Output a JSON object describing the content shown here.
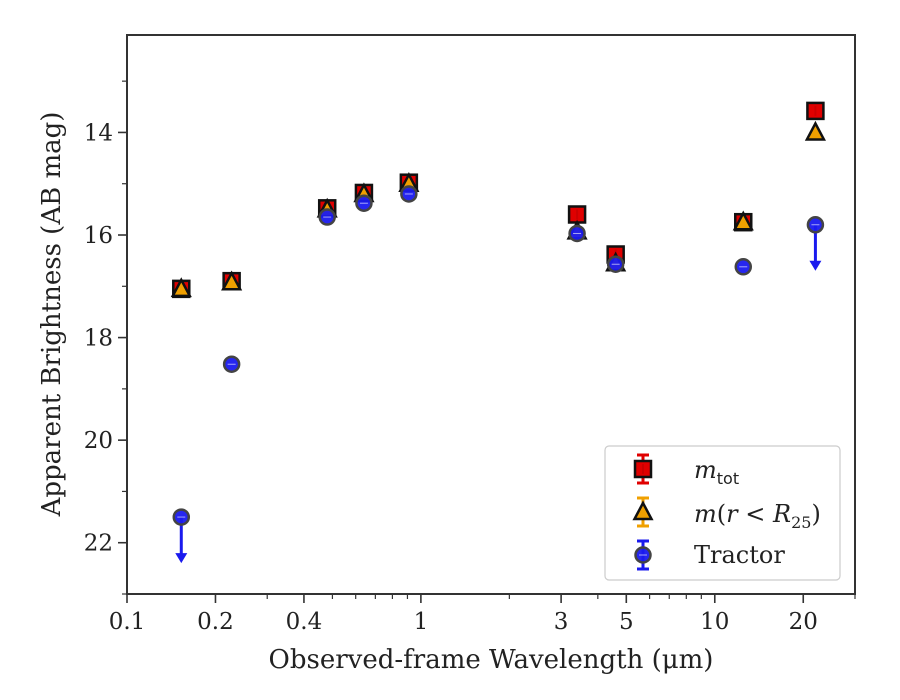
{
  "chart_data": {
    "type": "scatter",
    "xlabel": "Observed-frame Wavelength (μm)",
    "ylabel": "Apparent Brightness (AB mag)",
    "x_scale": "log",
    "xlim": [
      0.1,
      30
    ],
    "ylim": [
      23,
      12.1
    ],
    "y_inverted": true,
    "x_ticks": [
      {
        "value": 0.1,
        "label": "0.1"
      },
      {
        "value": 0.2,
        "label": "0.2"
      },
      {
        "value": 0.4,
        "label": "0.4"
      },
      {
        "value": 1,
        "label": "1"
      },
      {
        "value": 3,
        "label": "3"
      },
      {
        "value": 5,
        "label": "5"
      },
      {
        "value": 10,
        "label": "10"
      },
      {
        "value": 20,
        "label": "20"
      }
    ],
    "y_ticks": [
      {
        "value": 14,
        "label": "14"
      },
      {
        "value": 16,
        "label": "16"
      },
      {
        "value": 18,
        "label": "18"
      },
      {
        "value": 20,
        "label": "20"
      },
      {
        "value": 22,
        "label": "22"
      }
    ],
    "grid": false,
    "legend_position": "lower-right",
    "series": [
      {
        "name": "m_tot",
        "legend_label": "m_tot",
        "marker": "square",
        "color": "#e00000",
        "edge_color": "#111111",
        "points": [
          {
            "x": 0.153,
            "y": 17.05
          },
          {
            "x": 0.227,
            "y": 16.9
          },
          {
            "x": 0.48,
            "y": 15.48
          },
          {
            "x": 0.64,
            "y": 15.18
          },
          {
            "x": 0.91,
            "y": 14.98
          },
          {
            "x": 3.4,
            "y": 15.6
          },
          {
            "x": 4.6,
            "y": 16.38
          },
          {
            "x": 12.5,
            "y": 15.75
          },
          {
            "x": 22.0,
            "y": 13.58
          }
        ]
      },
      {
        "name": "m(r<R25)",
        "legend_label": "m(r < R25)",
        "marker": "triangle",
        "color": "#f0a000",
        "edge_color": "#111111",
        "points": [
          {
            "x": 0.153,
            "y": 17.05
          },
          {
            "x": 0.227,
            "y": 16.92
          },
          {
            "x": 0.48,
            "y": 15.5
          },
          {
            "x": 0.64,
            "y": 15.2
          },
          {
            "x": 0.91,
            "y": 15.0
          },
          {
            "x": 3.4,
            "y": 15.93
          },
          {
            "x": 4.6,
            "y": 16.55
          },
          {
            "x": 12.5,
            "y": 15.75
          },
          {
            "x": 22.0,
            "y": 14.0
          }
        ]
      },
      {
        "name": "Tractor",
        "legend_label": "Tractor",
        "marker": "circle",
        "color": "#1a1aee",
        "edge_color": "#444444",
        "points": [
          {
            "x": 0.153,
            "y": 21.5,
            "upper_limit": true
          },
          {
            "x": 0.227,
            "y": 18.52
          },
          {
            "x": 0.48,
            "y": 15.65
          },
          {
            "x": 0.64,
            "y": 15.38
          },
          {
            "x": 0.91,
            "y": 15.2
          },
          {
            "x": 3.4,
            "y": 15.97
          },
          {
            "x": 4.6,
            "y": 16.57
          },
          {
            "x": 12.5,
            "y": 16.62
          },
          {
            "x": 22.0,
            "y": 15.8,
            "upper_limit": true
          }
        ]
      }
    ]
  }
}
